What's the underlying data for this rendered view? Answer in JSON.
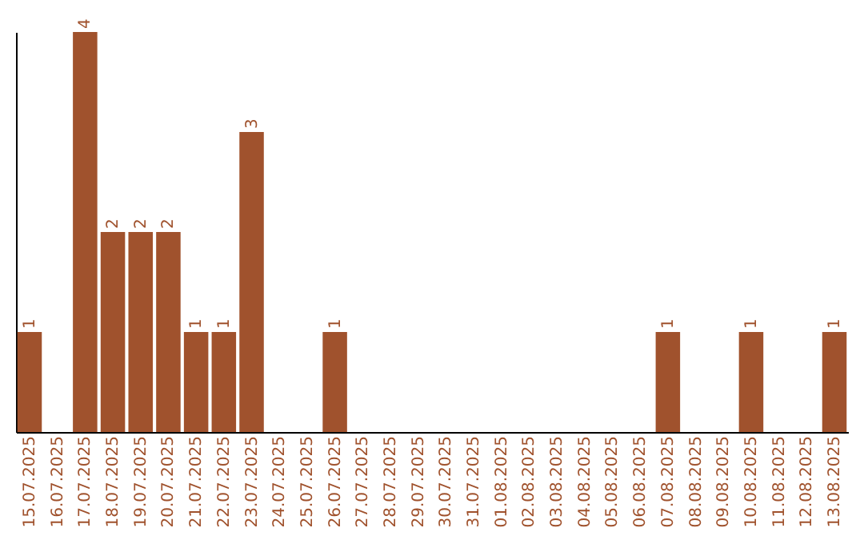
{
  "chart_data": {
    "type": "bar",
    "categories": [
      "15.07.2025",
      "16.07.2025",
      "17.07.2025",
      "18.07.2025",
      "19.07.2025",
      "20.07.2025",
      "21.07.2025",
      "22.07.2025",
      "23.07.2025",
      "24.07.2025",
      "25.07.2025",
      "26.07.2025",
      "27.07.2025",
      "28.07.2025",
      "29.07.2025",
      "30.07.2025",
      "31.07.2025",
      "01.08.2025",
      "02.08.2025",
      "03.08.2025",
      "04.08.2025",
      "05.08.2025",
      "06.08.2025",
      "07.08.2025",
      "08.08.2025",
      "09.08.2025",
      "10.08.2025",
      "11.08.2025",
      "12.08.2025",
      "13.08.2025"
    ],
    "values": [
      1,
      0,
      4,
      2,
      2,
      2,
      1,
      1,
      3,
      0,
      0,
      1,
      0,
      0,
      0,
      0,
      0,
      0,
      0,
      0,
      0,
      0,
      0,
      1,
      0,
      0,
      1,
      0,
      0,
      1
    ],
    "value_labels": [
      "1",
      null,
      "4",
      "2",
      "2",
      "2",
      "1",
      "1",
      "3",
      null,
      null,
      "1",
      null,
      null,
      null,
      null,
      null,
      null,
      null,
      null,
      null,
      null,
      null,
      "1",
      null,
      null,
      "1",
      null,
      null,
      "1"
    ],
    "color": "#a0522d",
    "tick_labels": "x",
    "grid": false
  }
}
